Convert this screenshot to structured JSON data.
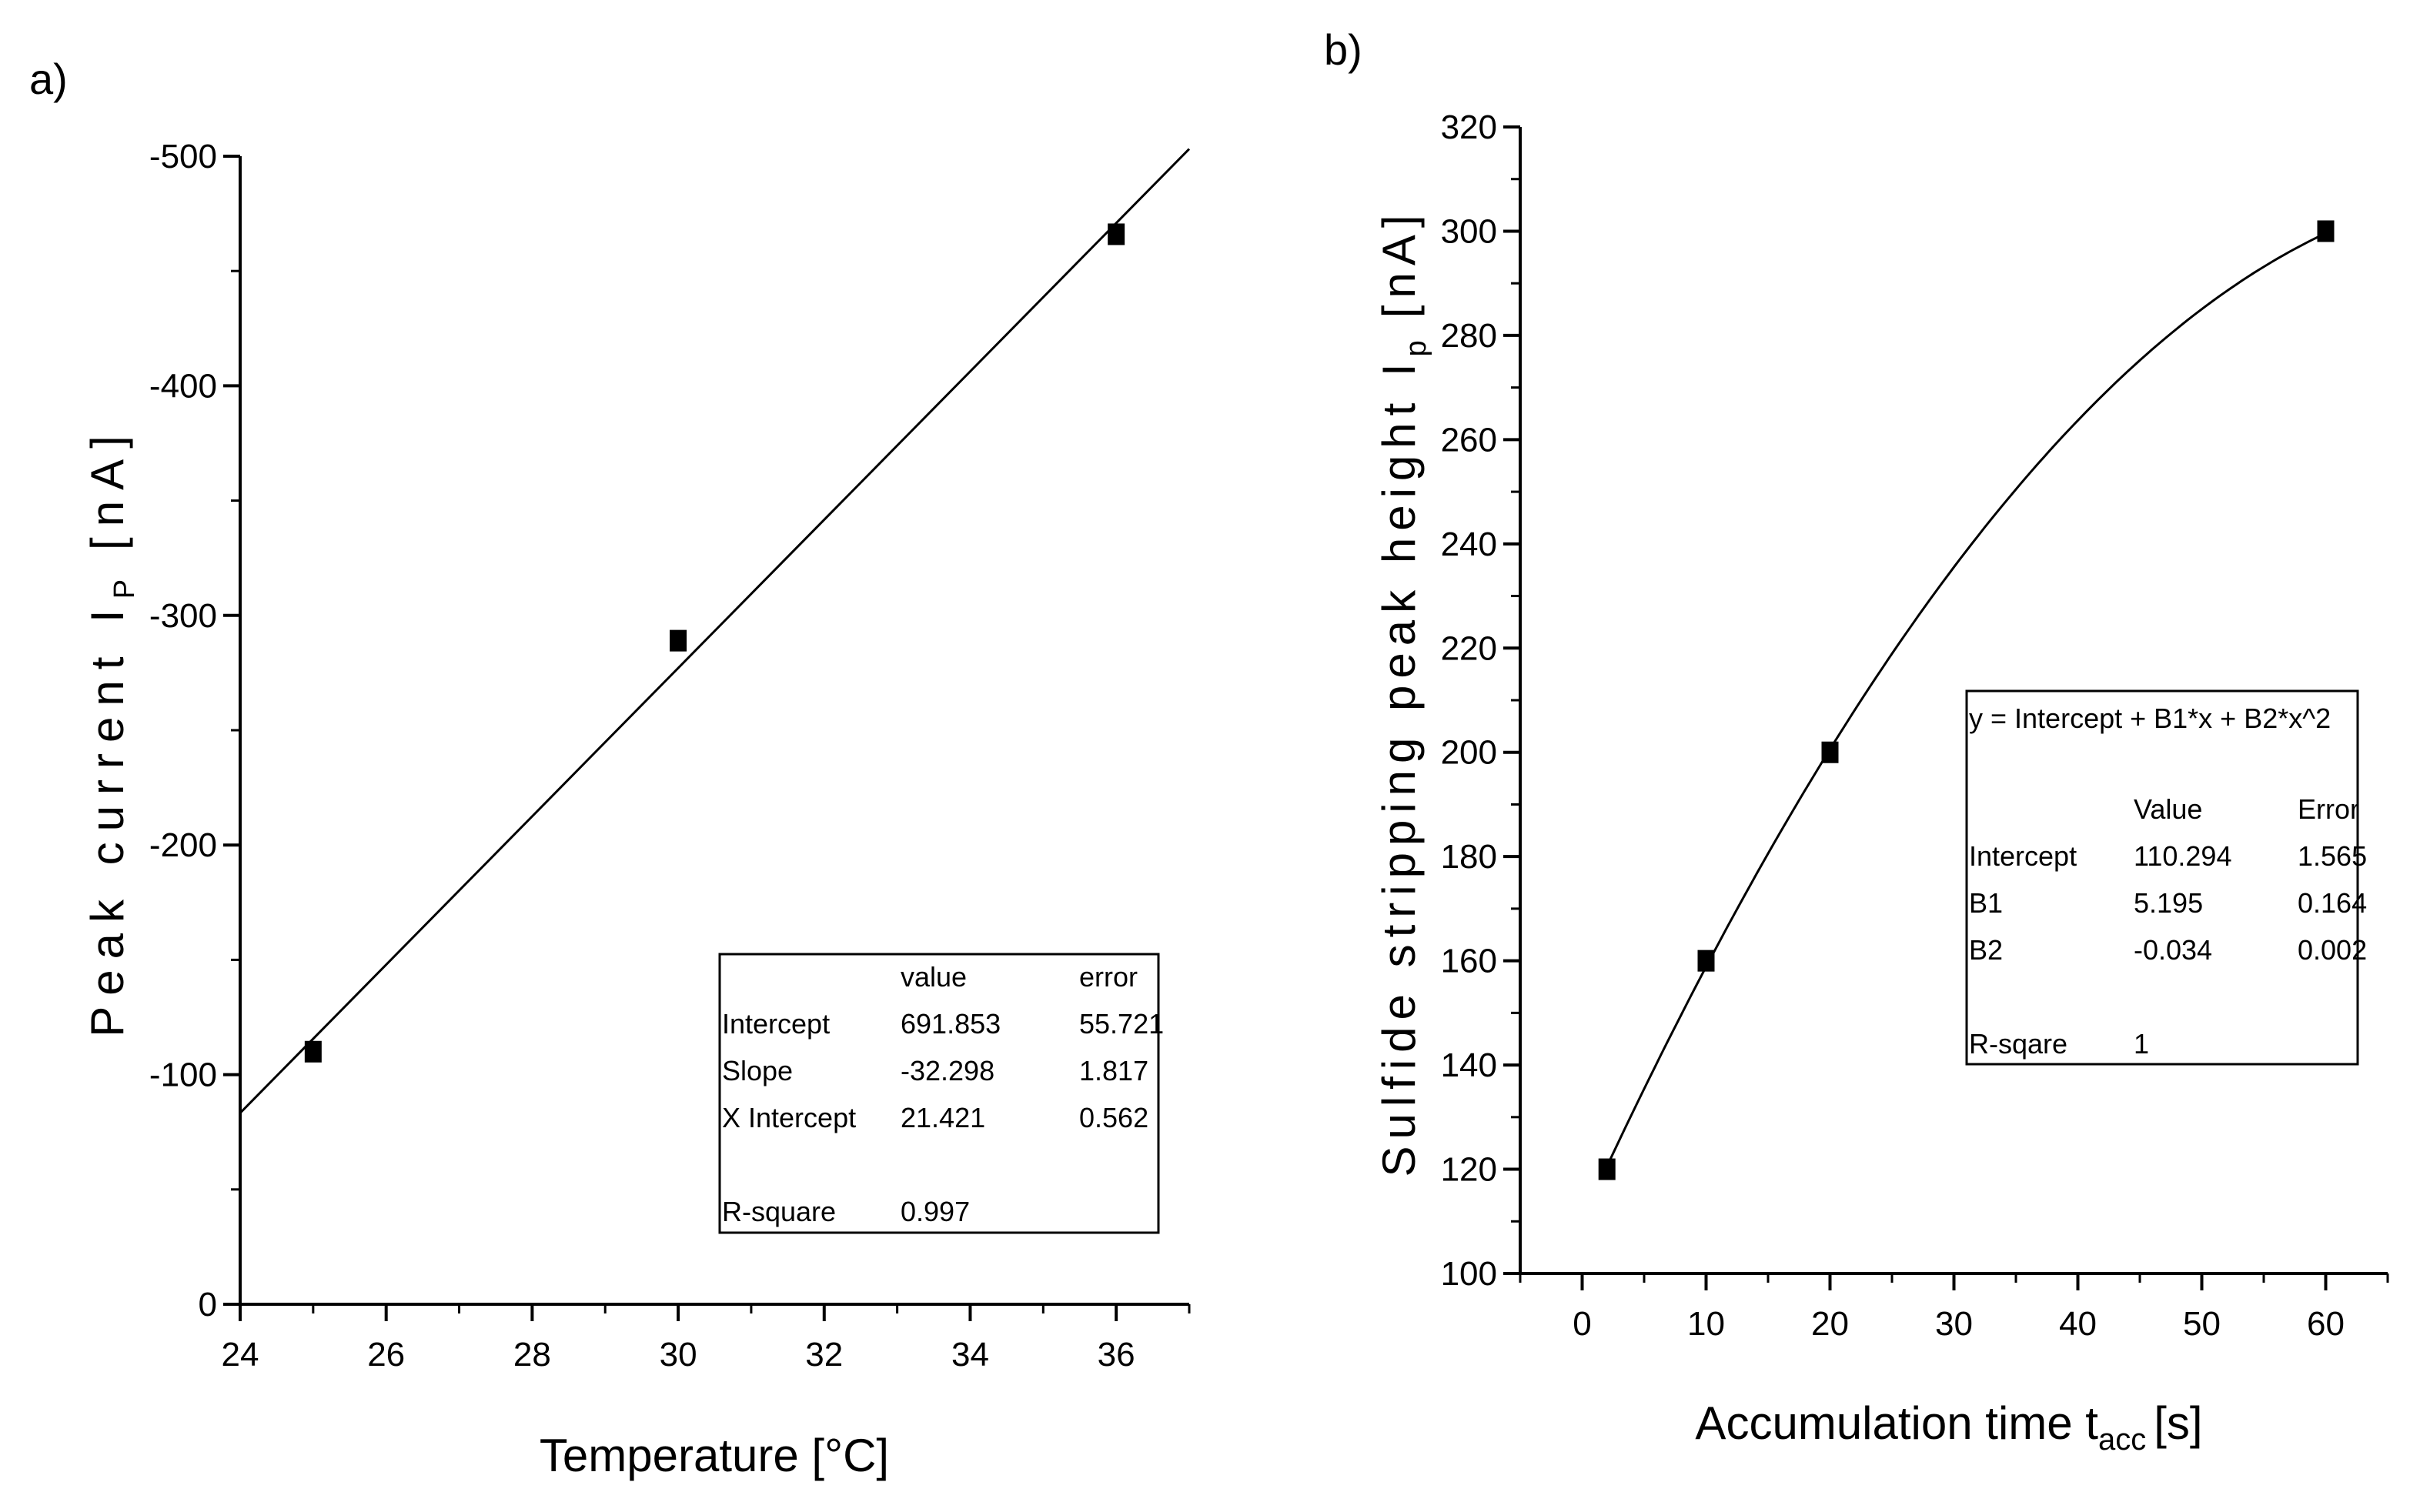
{
  "chart_data": [
    {
      "type": "scatter",
      "panel_label": "a)",
      "title": "",
      "xlabel": "Temperature [°C]",
      "ylabel_main": "Peak current I",
      "ylabel_sub": "P",
      "ylabel_unit": "[nA]",
      "xlim": [
        24,
        37
      ],
      "ylim": [
        0,
        -500
      ],
      "xticks": [
        24,
        26,
        28,
        30,
        32,
        34,
        36
      ],
      "xtick_labels": [
        "24",
        "26",
        "28",
        "30",
        "32",
        "34",
        "36"
      ],
      "yticks": [
        0,
        -100,
        -200,
        -300,
        -400,
        -500
      ],
      "ytick_labels": [
        "0",
        "-100",
        "-200",
        "-300",
        "-400",
        "-500"
      ],
      "grid": false,
      "points": [
        {
          "x": 25,
          "y": -110
        },
        {
          "x": 30,
          "y": -289
        },
        {
          "x": 36,
          "y": -466
        }
      ],
      "fit": {
        "type": "linear",
        "intercept": 691.853,
        "slope": -32.298
      },
      "fit_table": {
        "headers": [
          "",
          "value",
          "error"
        ],
        "rows": [
          [
            "Intercept",
            "691.853",
            "55.721"
          ],
          [
            "Slope",
            "-32.298",
            "1.817"
          ],
          [
            "X Intercept",
            "21.421",
            "0.562"
          ],
          [
            "",
            "",
            ""
          ],
          [
            "R-square",
            "0.997",
            ""
          ]
        ]
      }
    },
    {
      "type": "scatter",
      "panel_label": "b)",
      "title": "",
      "xlabel_main": "Accumulation time t",
      "xlabel_sub": "acc",
      "xlabel_unit": "[s]",
      "ylabel_main": "Sulfide stripping peak height I",
      "ylabel_sub": "p",
      "ylabel_unit": "[nA]",
      "xlim": [
        -5,
        65
      ],
      "ylim": [
        100,
        320
      ],
      "xticks": [
        0,
        10,
        20,
        30,
        40,
        50,
        60
      ],
      "xtick_labels": [
        "0",
        "10",
        "20",
        "30",
        "40",
        "50",
        "60"
      ],
      "yticks": [
        100,
        120,
        140,
        160,
        180,
        200,
        220,
        240,
        260,
        280,
        300,
        320
      ],
      "ytick_labels": [
        "100",
        "120",
        "140",
        "160",
        "180",
        "200",
        "220",
        "240",
        "260",
        "280",
        "300",
        "320"
      ],
      "grid": false,
      "points": [
        {
          "x": 2,
          "y": 120
        },
        {
          "x": 10,
          "y": 160
        },
        {
          "x": 20,
          "y": 200
        },
        {
          "x": 60,
          "y": 300
        }
      ],
      "fit": {
        "type": "quadratic",
        "intercept": 110.294,
        "b1": 5.195,
        "b2": -0.034,
        "x_range": [
          2,
          60
        ]
      },
      "fit_equation": "y = Intercept + B1*x + B2*x^2",
      "fit_table": {
        "headers": [
          "",
          "Value",
          "Error"
        ],
        "rows": [
          [
            "Intercept",
            "110.294",
            "1.565"
          ],
          [
            "B1",
            "5.195",
            "0.164"
          ],
          [
            "B2",
            "-0.034",
            "0.002"
          ],
          [
            "",
            "",
            ""
          ],
          [
            "R-sqare",
            "1",
            ""
          ]
        ]
      }
    }
  ]
}
